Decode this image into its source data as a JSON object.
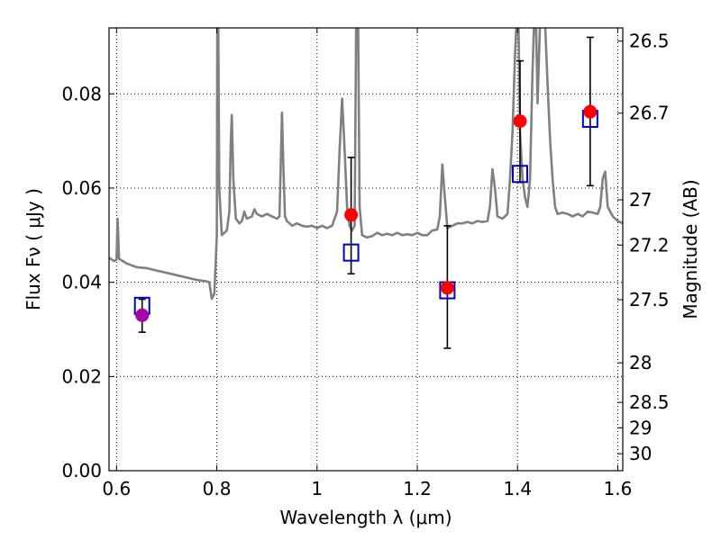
{
  "chart_data": {
    "type": "scatter",
    "xlabel": "Wavelength  λ (μm)",
    "ylabel": "Flux  Fν  ( μJy )",
    "ylabel_right": "Magnitude (AB)",
    "xlim": [
      0.585,
      1.61
    ],
    "ylim": [
      0.0,
      0.094
    ],
    "grid": true,
    "x_ticks": [
      0.6,
      0.8,
      1.0,
      1.2,
      1.4,
      1.6
    ],
    "x_tick_labels": [
      "0.6",
      "0.8",
      "1",
      "1.2",
      "1.4",
      "1.6"
    ],
    "y_ticks": [
      0.0,
      0.02,
      0.04,
      0.06,
      0.08
    ],
    "y_tick_labels": [
      "0.00",
      "0.02",
      "0.04",
      "0.06",
      "0.08"
    ],
    "right_ticks": [
      {
        "label": "26.5",
        "flux": 0.0912
      },
      {
        "label": "26.7",
        "flux": 0.0759
      },
      {
        "label": "27",
        "flux": 0.0575
      },
      {
        "label": "27.2",
        "flux": 0.0479
      },
      {
        "label": "27.5",
        "flux": 0.0363
      },
      {
        "label": "28",
        "flux": 0.0229
      },
      {
        "label": "28.5",
        "flux": 0.0145
      },
      {
        "label": "29",
        "flux": 0.0091
      },
      {
        "label": "30",
        "flux": 0.0036
      }
    ],
    "colors": {
      "sed": "#808080",
      "observed": "#ff0000",
      "observed_first": "#aa00aa",
      "model": "#0000cc",
      "errorbar": "#000000"
    },
    "model_spectrum": [
      [
        0.585,
        0.0452
      ],
      [
        0.595,
        0.0445
      ],
      [
        0.6,
        0.0448
      ],
      [
        0.602,
        0.0535
      ],
      [
        0.605,
        0.045
      ],
      [
        0.62,
        0.044
      ],
      [
        0.64,
        0.0432
      ],
      [
        0.66,
        0.043
      ],
      [
        0.68,
        0.0425
      ],
      [
        0.7,
        0.042
      ],
      [
        0.72,
        0.0415
      ],
      [
        0.74,
        0.041
      ],
      [
        0.76,
        0.0405
      ],
      [
        0.78,
        0.0402
      ],
      [
        0.785,
        0.04
      ],
      [
        0.79,
        0.0365
      ],
      [
        0.795,
        0.0375
      ],
      [
        0.8,
        0.05
      ],
      [
        0.801,
        0.095
      ],
      [
        0.803,
        0.095
      ],
      [
        0.805,
        0.06
      ],
      [
        0.81,
        0.05
      ],
      [
        0.82,
        0.051
      ],
      [
        0.825,
        0.055
      ],
      [
        0.828,
        0.07
      ],
      [
        0.83,
        0.0755
      ],
      [
        0.833,
        0.062
      ],
      [
        0.838,
        0.0535
      ],
      [
        0.845,
        0.0525
      ],
      [
        0.85,
        0.053
      ],
      [
        0.855,
        0.055
      ],
      [
        0.86,
        0.0535
      ],
      [
        0.87,
        0.054
      ],
      [
        0.875,
        0.0555
      ],
      [
        0.88,
        0.0545
      ],
      [
        0.89,
        0.054
      ],
      [
        0.9,
        0.0545
      ],
      [
        0.91,
        0.054
      ],
      [
        0.92,
        0.0535
      ],
      [
        0.925,
        0.054
      ],
      [
        0.93,
        0.076
      ],
      [
        0.933,
        0.064
      ],
      [
        0.936,
        0.054
      ],
      [
        0.94,
        0.053
      ],
      [
        0.95,
        0.052
      ],
      [
        0.96,
        0.0525
      ],
      [
        0.97,
        0.052
      ],
      [
        0.98,
        0.0518
      ],
      [
        0.99,
        0.052
      ],
      [
        1.0,
        0.0515
      ],
      [
        1.01,
        0.052
      ],
      [
        1.02,
        0.0515
      ],
      [
        1.03,
        0.052
      ],
      [
        1.04,
        0.055
      ],
      [
        1.045,
        0.068
      ],
      [
        1.05,
        0.079
      ],
      [
        1.055,
        0.068
      ],
      [
        1.06,
        0.056
      ],
      [
        1.065,
        0.052
      ],
      [
        1.07,
        0.051
      ],
      [
        1.075,
        0.052
      ],
      [
        1.078,
        0.095
      ],
      [
        1.082,
        0.095
      ],
      [
        1.085,
        0.056
      ],
      [
        1.09,
        0.05
      ],
      [
        1.1,
        0.0495
      ],
      [
        1.11,
        0.0498
      ],
      [
        1.12,
        0.0505
      ],
      [
        1.13,
        0.05
      ],
      [
        1.14,
        0.0503
      ],
      [
        1.15,
        0.05
      ],
      [
        1.16,
        0.0505
      ],
      [
        1.17,
        0.05
      ],
      [
        1.18,
        0.0502
      ],
      [
        1.19,
        0.05
      ],
      [
        1.2,
        0.0505
      ],
      [
        1.21,
        0.05
      ],
      [
        1.22,
        0.05
      ],
      [
        1.23,
        0.051
      ],
      [
        1.24,
        0.0512
      ],
      [
        1.245,
        0.054
      ],
      [
        1.25,
        0.065
      ],
      [
        1.255,
        0.058
      ],
      [
        1.26,
        0.0515
      ],
      [
        1.27,
        0.052
      ],
      [
        1.28,
        0.0525
      ],
      [
        1.29,
        0.0525
      ],
      [
        1.3,
        0.0528
      ],
      [
        1.31,
        0.0525
      ],
      [
        1.32,
        0.053
      ],
      [
        1.33,
        0.0528
      ],
      [
        1.34,
        0.053
      ],
      [
        1.345,
        0.056
      ],
      [
        1.35,
        0.064
      ],
      [
        1.355,
        0.06
      ],
      [
        1.36,
        0.054
      ],
      [
        1.37,
        0.0535
      ],
      [
        1.38,
        0.0545
      ],
      [
        1.385,
        0.062
      ],
      [
        1.39,
        0.072
      ],
      [
        1.395,
        0.088
      ],
      [
        1.398,
        0.095
      ],
      [
        1.402,
        0.095
      ],
      [
        1.405,
        0.072
      ],
      [
        1.41,
        0.062
      ],
      [
        1.415,
        0.058
      ],
      [
        1.42,
        0.056
      ],
      [
        1.425,
        0.062
      ],
      [
        1.43,
        0.085
      ],
      [
        1.433,
        0.095
      ],
      [
        1.437,
        0.095
      ],
      [
        1.44,
        0.078
      ],
      [
        1.445,
        0.095
      ],
      [
        1.455,
        0.095
      ],
      [
        1.46,
        0.082
      ],
      [
        1.465,
        0.07
      ],
      [
        1.47,
        0.062
      ],
      [
        1.475,
        0.056
      ],
      [
        1.48,
        0.0545
      ],
      [
        1.49,
        0.0548
      ],
      [
        1.5,
        0.0545
      ],
      [
        1.51,
        0.054
      ],
      [
        1.52,
        0.0545
      ],
      [
        1.53,
        0.054
      ],
      [
        1.54,
        0.055
      ],
      [
        1.55,
        0.0548
      ],
      [
        1.56,
        0.0545
      ],
      [
        1.565,
        0.056
      ],
      [
        1.57,
        0.062
      ],
      [
        1.575,
        0.0635
      ],
      [
        1.58,
        0.056
      ],
      [
        1.59,
        0.054
      ],
      [
        1.6,
        0.053
      ],
      [
        1.61,
        0.0525
      ]
    ],
    "observed_points": [
      {
        "x": 0.651,
        "y": 0.033,
        "err_low": 0.0036,
        "err_high": 0.0034
      },
      {
        "x": 1.068,
        "y": 0.0543,
        "err_low": 0.0125,
        "err_high": 0.0122
      },
      {
        "x": 1.26,
        "y": 0.0388,
        "err_low": 0.0128,
        "err_high": 0.0132
      },
      {
        "x": 1.405,
        "y": 0.0742,
        "err_low": 0.013,
        "err_high": 0.0128
      },
      {
        "x": 1.545,
        "y": 0.0762,
        "err_low": 0.0157,
        "err_high": 0.0158
      }
    ],
    "model_points": [
      {
        "x": 0.651,
        "y": 0.035
      },
      {
        "x": 1.068,
        "y": 0.0463
      },
      {
        "x": 1.26,
        "y": 0.0383
      },
      {
        "x": 1.405,
        "y": 0.063
      },
      {
        "x": 1.545,
        "y": 0.0747
      }
    ]
  }
}
